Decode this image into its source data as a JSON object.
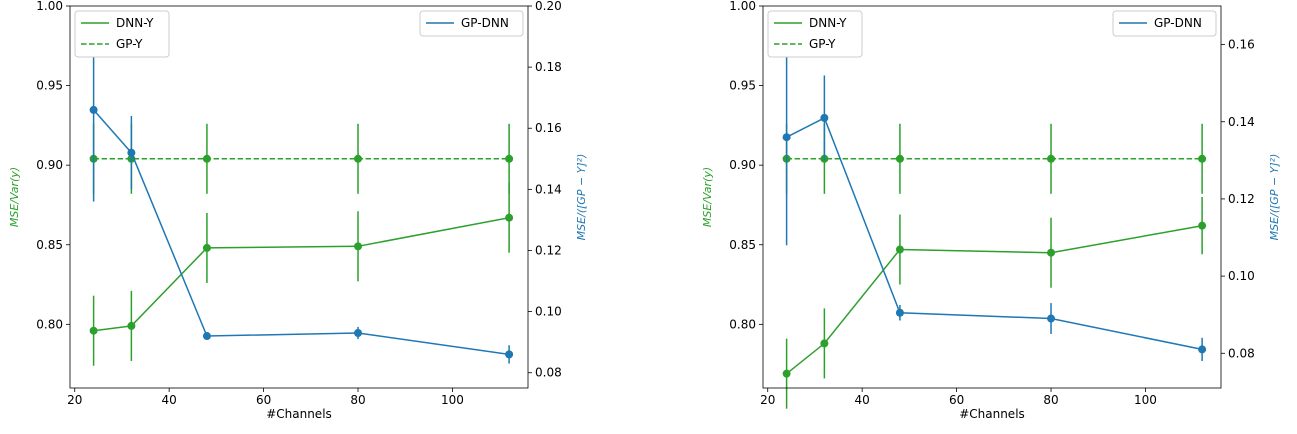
{
  "colors": {
    "green": "#2ca02c",
    "blue": "#1f77b4",
    "axis": "#000000",
    "legend_edge": "#cccccc"
  },
  "chart_data": [
    {
      "type": "line",
      "grid": false,
      "xlabel": "#Channels",
      "ylabel_left": "MSE/Var(y)",
      "ylabel_right": "MSE/([GP − Y]²)",
      "xlim": [
        19,
        116
      ],
      "ylim_left": [
        0.76,
        1.0
      ],
      "ylim_right": [
        0.075,
        0.2
      ],
      "x_ticks": [
        20,
        40,
        60,
        80,
        100
      ],
      "x_tick_labels": [
        "20",
        "40",
        "60",
        "80",
        "100"
      ],
      "y_ticks_left": [
        0.8,
        0.85,
        0.9,
        0.95,
        1.0
      ],
      "y_tick_labels_left": [
        "0.80",
        "0.85",
        "0.90",
        "0.95",
        "1.00"
      ],
      "y_ticks_right": [
        0.08,
        0.1,
        0.12,
        0.14,
        0.16,
        0.18,
        0.2
      ],
      "y_tick_labels_right": [
        "0.08",
        "0.10",
        "0.12",
        "0.14",
        "0.16",
        "0.18",
        "0.20"
      ],
      "legend_left": {
        "placement": "top-left",
        "entries": [
          "DNN-Y",
          "GP-Y"
        ]
      },
      "legend_right": {
        "placement": "top-right",
        "entries": [
          "GP-DNN"
        ]
      },
      "series": [
        {
          "name": "DNN-Y",
          "axis": "left",
          "style": "solid",
          "color": "green",
          "x": [
            24,
            32,
            48,
            80,
            112
          ],
          "y": [
            0.796,
            0.799,
            0.848,
            0.849,
            0.867
          ],
          "err": [
            0.022,
            0.022,
            0.022,
            0.022,
            0.022
          ]
        },
        {
          "name": "GP-Y",
          "axis": "left",
          "style": "dashed",
          "color": "green",
          "x": [
            24,
            32,
            48,
            80,
            112
          ],
          "y": [
            0.904,
            0.904,
            0.904,
            0.904,
            0.904
          ],
          "err": [
            0.022,
            0.022,
            0.022,
            0.022,
            0.022
          ]
        },
        {
          "name": "GP-DNN",
          "axis": "right",
          "style": "solid",
          "color": "blue",
          "x": [
            24,
            32,
            48,
            80,
            112
          ],
          "y": [
            0.166,
            0.152,
            0.092,
            0.093,
            0.086
          ],
          "err": [
            0.03,
            0.012,
            0.001,
            0.002,
            0.003
          ]
        }
      ]
    },
    {
      "type": "line",
      "grid": false,
      "xlabel": "#Channels",
      "ylabel_left": "MSE/Var(y)",
      "ylabel_right": "MSE/([GP − Y]²)",
      "xlim": [
        19,
        116
      ],
      "ylim_left": [
        0.76,
        1.0
      ],
      "ylim_right": [
        0.071,
        0.17
      ],
      "x_ticks": [
        20,
        40,
        60,
        80,
        100
      ],
      "x_tick_labels": [
        "20",
        "40",
        "60",
        "80",
        "100"
      ],
      "y_ticks_left": [
        0.8,
        0.85,
        0.9,
        0.95,
        1.0
      ],
      "y_tick_labels_left": [
        "0.80",
        "0.85",
        "0.90",
        "0.95",
        "1.00"
      ],
      "y_ticks_right": [
        0.08,
        0.1,
        0.12,
        0.14,
        0.16
      ],
      "y_tick_labels_right": [
        "0.08",
        "0.10",
        "0.12",
        "0.14",
        "0.16"
      ],
      "legend_left": {
        "placement": "top-left",
        "entries": [
          "DNN-Y",
          "GP-Y"
        ]
      },
      "legend_right": {
        "placement": "top-right",
        "entries": [
          "GP-DNN"
        ]
      },
      "series": [
        {
          "name": "DNN-Y",
          "axis": "left",
          "style": "solid",
          "color": "green",
          "x": [
            24,
            32,
            48,
            80,
            112
          ],
          "y": [
            0.769,
            0.788,
            0.847,
            0.845,
            0.862
          ],
          "err": [
            0.022,
            0.022,
            0.022,
            0.022,
            0.018
          ]
        },
        {
          "name": "GP-Y",
          "axis": "left",
          "style": "dashed",
          "color": "green",
          "x": [
            24,
            32,
            48,
            80,
            112
          ],
          "y": [
            0.904,
            0.904,
            0.904,
            0.904,
            0.904
          ],
          "err": [
            0.022,
            0.022,
            0.022,
            0.022,
            0.022
          ]
        },
        {
          "name": "GP-DNN",
          "axis": "right",
          "style": "solid",
          "color": "blue",
          "x": [
            24,
            32,
            48,
            80,
            112
          ],
          "y": [
            0.136,
            0.141,
            0.0905,
            0.089,
            0.081
          ],
          "err": [
            0.028,
            0.011,
            0.002,
            0.004,
            0.003
          ]
        }
      ]
    }
  ]
}
